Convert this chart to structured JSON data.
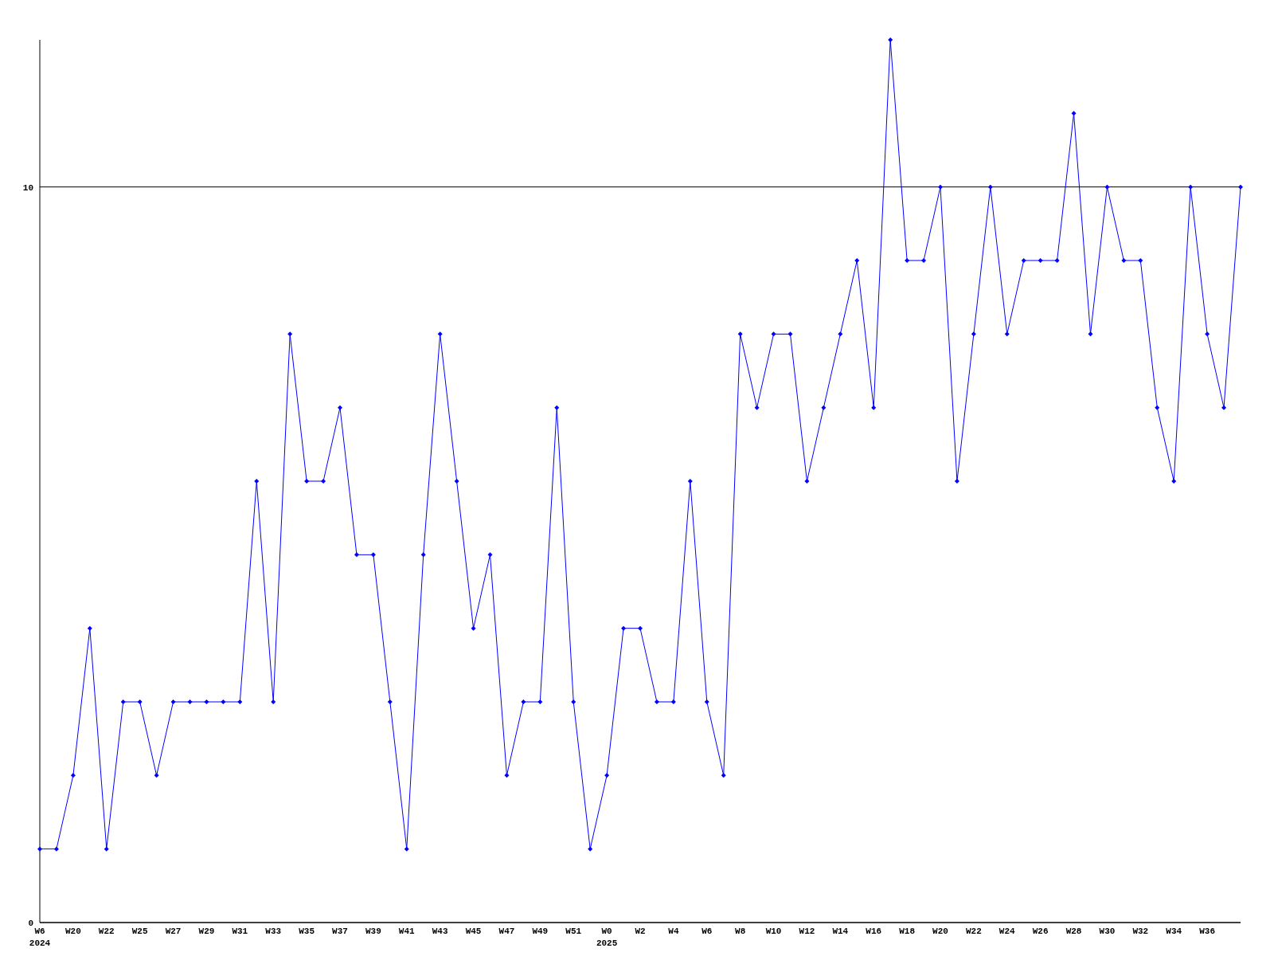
{
  "chart_data": {
    "type": "line",
    "categories": [
      "W6\n2024",
      null,
      "W20",
      null,
      "W22",
      null,
      "W25",
      null,
      "W27",
      null,
      "W29",
      null,
      "W31",
      null,
      "W33",
      null,
      "W35",
      null,
      "W37",
      null,
      "W39",
      null,
      "W41",
      null,
      "W43",
      null,
      "W45",
      null,
      "W47",
      null,
      "W49",
      null,
      "W51",
      null,
      "W0\n2025",
      null,
      "W2",
      null,
      "W4",
      null,
      "W6",
      null,
      "W8",
      null,
      "W10",
      null,
      "W12",
      null,
      "W14",
      null,
      "W16",
      null,
      "W18",
      null,
      "W20",
      null,
      "W22",
      null,
      "W24",
      null,
      "W26",
      null,
      "W28",
      null,
      "W30",
      null,
      "W32",
      null,
      "W34",
      null,
      "W36",
      null,
      null
    ],
    "series": [
      {
        "color": "#0000ff",
        "values": [
          1,
          1,
          2,
          4,
          1,
          3,
          3,
          2,
          3,
          3,
          3,
          3,
          3,
          6,
          3,
          8,
          6,
          6,
          7,
          5,
          5,
          3,
          1,
          5,
          8,
          6,
          4,
          5,
          2,
          3,
          3,
          7,
          3,
          1,
          2,
          4,
          4,
          3,
          3,
          6,
          3,
          2,
          8,
          7,
          8,
          8,
          6,
          7,
          8,
          9,
          7,
          12,
          9,
          9,
          10,
          6,
          8,
          10,
          8,
          9,
          9,
          9,
          11,
          8,
          10,
          9,
          9,
          7,
          6,
          10,
          8,
          7,
          10
        ]
      }
    ],
    "ylim": [
      0,
      12
    ],
    "yticks": [
      0,
      10
    ],
    "grid": "y",
    "marker": "diamond",
    "line_style": "solid"
  }
}
